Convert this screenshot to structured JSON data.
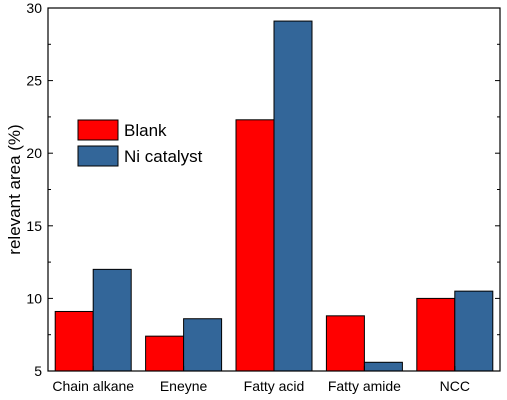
{
  "chart_data": {
    "type": "bar",
    "title": "",
    "xlabel": "",
    "ylabel": "relevant area (%)",
    "ylim": [
      5,
      30
    ],
    "yticks": [
      5,
      10,
      15,
      20,
      25,
      30
    ],
    "grid": false,
    "legend_position": "upper-left",
    "categories": [
      "Chain alkane",
      "Eneyne",
      "Fatty acid",
      "Fatty amide",
      "NCC"
    ],
    "series": [
      {
        "name": "Blank",
        "color": "#ff0000",
        "values": [
          9.1,
          7.4,
          22.3,
          8.8,
          10.0
        ]
      },
      {
        "name": "Ni catalyst",
        "color": "#336699",
        "values": [
          12.0,
          8.6,
          29.1,
          5.6,
          10.5
        ]
      }
    ]
  }
}
